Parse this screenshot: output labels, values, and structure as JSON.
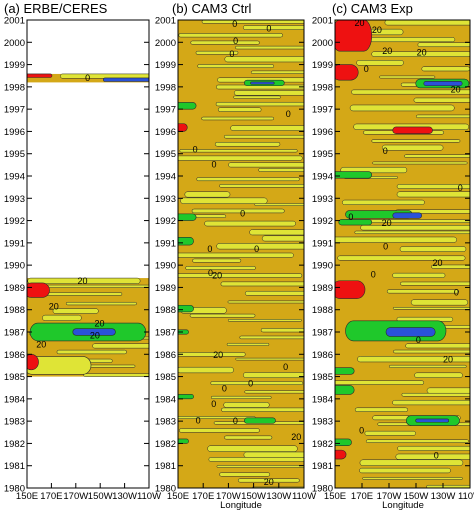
{
  "colors": {
    "bg": "#d4a817",
    "yellow": "#dfe436",
    "green": "#1fc82b",
    "blue": "#2a52d8",
    "red": "#ee1111",
    "contour": "#2a2a2a"
  },
  "chart_data": [
    {
      "type": "heatmap",
      "title": "(a) ERBE/CERES",
      "xlabel": "",
      "ylabel": "",
      "x_ticks": [
        "150E",
        "170E",
        "170W",
        "150W",
        "130W",
        "110W"
      ],
      "y_ticks": [
        "1980",
        "1981",
        "1982",
        "1983",
        "1984",
        "1985",
        "1986",
        "1987",
        "1988",
        "1989",
        "1990",
        "1991",
        "1992",
        "1993",
        "1994",
        "1995",
        "1996",
        "1997",
        "1998",
        "1999",
        "2000",
        "2001"
      ],
      "ylim": [
        1980,
        2001
      ],
      "data_periods": [
        [
          1985.0,
          1989.42
        ],
        [
          1998.2,
          1998.58
        ]
      ],
      "contour_labels": [
        "20",
        "20",
        "20",
        "20",
        "20",
        "0"
      ],
      "features": [
        {
          "color": "red",
          "x": [
            150,
            166
          ],
          "y": [
            1988.55,
            1989.2
          ]
        },
        {
          "color": "green",
          "x": [
            155,
            245
          ],
          "y": [
            1986.6,
            1987.4
          ]
        },
        {
          "color": "blue",
          "x": [
            190,
            220
          ],
          "y": [
            1986.85,
            1987.15
          ]
        },
        {
          "color": "yellow",
          "x": [
            150,
            200
          ],
          "y": [
            1985.1,
            1985.9
          ]
        },
        {
          "color": "red",
          "x": [
            150,
            157
          ],
          "y": [
            1985.3,
            1986.0
          ]
        },
        {
          "color": "red",
          "x": [
            150,
            168
          ],
          "y": [
            1998.42,
            1998.58
          ]
        },
        {
          "color": "blue",
          "x": [
            215,
            250
          ],
          "y": [
            1998.24,
            1998.4
          ]
        }
      ]
    },
    {
      "type": "heatmap",
      "title": "(b) CAM3 Ctrl",
      "xlabel": "Longitude",
      "ylabel": "",
      "x_ticks": [
        "150E",
        "170E",
        "170W",
        "150W",
        "130W",
        "110W"
      ],
      "y_ticks": [
        "1980",
        "1981",
        "1982",
        "1983",
        "1984",
        "1985",
        "1986",
        "1987",
        "1988",
        "1989",
        "1990",
        "1991",
        "1992",
        "1993",
        "1994",
        "1995",
        "1996",
        "1997",
        "1998",
        "1999",
        "2000",
        "2001"
      ],
      "ylim": [
        1980,
        2001
      ],
      "contour_labels": [
        "0",
        "0",
        "0",
        "0",
        "0",
        "0",
        "20",
        "0",
        "20",
        "20",
        "0",
        "0",
        "0",
        "0",
        "0",
        "20",
        "0",
        "0",
        "0",
        "0",
        "0"
      ],
      "features": [
        {
          "color": "green",
          "x": [
            205,
            232
          ],
          "y": [
            1998.05,
            1998.3
          ]
        },
        {
          "color": "blue",
          "x": [
            210,
            224
          ],
          "y": [
            1998.12,
            1998.22
          ]
        },
        {
          "color": "green",
          "x": [
            150,
            162
          ],
          "y": [
            1997.0,
            1997.3
          ]
        },
        {
          "color": "red",
          "x": [
            150,
            155
          ],
          "y": [
            1996.0,
            1996.35
          ]
        },
        {
          "color": "green",
          "x": [
            150,
            162
          ],
          "y": [
            1992.0,
            1992.3
          ]
        },
        {
          "color": "green",
          "x": [
            150,
            160
          ],
          "y": [
            1990.9,
            1991.25
          ]
        },
        {
          "color": "green",
          "x": [
            150,
            160
          ],
          "y": [
            1987.9,
            1988.2
          ]
        },
        {
          "color": "green",
          "x": [
            150,
            156
          ],
          "y": [
            1986.9,
            1987.1
          ]
        },
        {
          "color": "green",
          "x": [
            150,
            160
          ],
          "y": [
            1984.0,
            1984.2
          ]
        },
        {
          "color": "green",
          "x": [
            150,
            156
          ],
          "y": [
            1982.0,
            1982.2
          ]
        },
        {
          "color": "green",
          "x": [
            205,
            225
          ],
          "y": [
            1982.9,
            1983.15
          ]
        }
      ]
    },
    {
      "type": "heatmap",
      "title": "(c) CAM3 Exp",
      "xlabel": "Longitude",
      "ylabel": "",
      "x_ticks": [
        "150E",
        "170E",
        "170W",
        "150W",
        "130W",
        "110W"
      ],
      "y_ticks": [
        "1980",
        "1981",
        "1982",
        "1983",
        "1984",
        "1985",
        "1986",
        "1987",
        "1988",
        "1989",
        "1990",
        "1991",
        "1992",
        "1993",
        "1994",
        "1995",
        "1996",
        "1997",
        "1998",
        "1999",
        "2000",
        "2001"
      ],
      "ylim": [
        1980,
        2001
      ],
      "contour_labels": [
        "20",
        "0",
        "20",
        "20",
        "20",
        "0",
        "0",
        "20",
        "20",
        "0",
        "0",
        "20",
        "0",
        "0",
        "0",
        "0",
        "20",
        "0"
      ],
      "features": [
        {
          "color": "red",
          "x": [
            150,
            175
          ],
          "y": [
            1999.6,
            2001.0
          ]
        },
        {
          "color": "red",
          "x": [
            150,
            165
          ],
          "y": [
            1998.3,
            1999.0
          ]
        },
        {
          "color": "green",
          "x": [
            212,
            247
          ],
          "y": [
            1997.95,
            1998.35
          ]
        },
        {
          "color": "blue",
          "x": [
            218,
            242
          ],
          "y": [
            1998.05,
            1998.25
          ]
        },
        {
          "color": "red",
          "x": [
            195,
            220
          ],
          "y": [
            1995.9,
            1996.2
          ]
        },
        {
          "color": "green",
          "x": [
            150,
            175
          ],
          "y": [
            1993.9,
            1994.2
          ]
        },
        {
          "color": "green",
          "x": [
            160,
            205
          ],
          "y": [
            1992.1,
            1992.45
          ]
        },
        {
          "color": "blue",
          "x": [
            195,
            212
          ],
          "y": [
            1992.1,
            1992.35
          ]
        },
        {
          "color": "green",
          "x": [
            155,
            175
          ],
          "y": [
            1991.8,
            1992.05
          ]
        },
        {
          "color": "red",
          "x": [
            150,
            170
          ],
          "y": [
            1988.5,
            1989.3
          ]
        },
        {
          "color": "green",
          "x": [
            160,
            230
          ],
          "y": [
            1986.6,
            1987.5
          ]
        },
        {
          "color": "blue",
          "x": [
            190,
            222
          ],
          "y": [
            1986.8,
            1987.2
          ]
        },
        {
          "color": "green",
          "x": [
            205,
            240
          ],
          "y": [
            1982.8,
            1983.25
          ]
        },
        {
          "color": "blue",
          "x": [
            212,
            232
          ],
          "y": [
            1982.95,
            1983.1
          ]
        },
        {
          "color": "green",
          "x": [
            150,
            160
          ],
          "y": [
            1981.9,
            1982.2
          ]
        },
        {
          "color": "red",
          "x": [
            150,
            156
          ],
          "y": [
            1981.3,
            1981.7
          ]
        },
        {
          "color": "green",
          "x": [
            150,
            162
          ],
          "y": [
            1984.2,
            1984.6
          ]
        },
        {
          "color": "green",
          "x": [
            150,
            162
          ],
          "y": [
            1985.1,
            1985.4
          ]
        }
      ]
    }
  ]
}
